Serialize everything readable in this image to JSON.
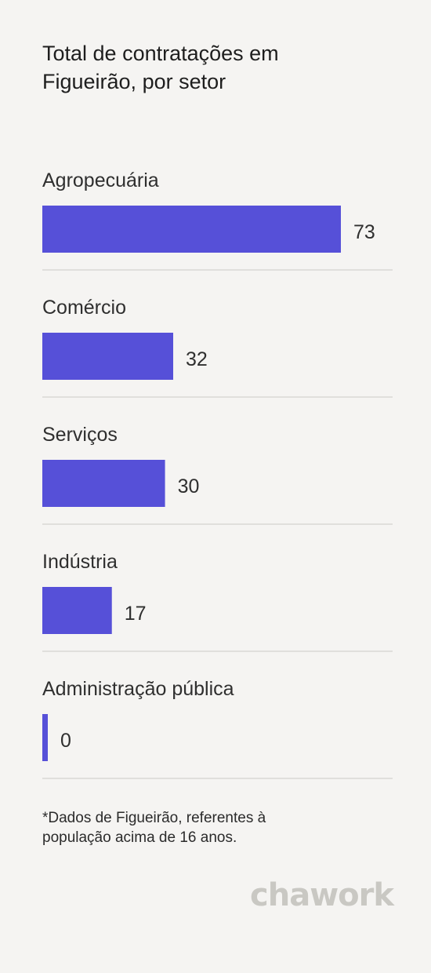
{
  "chart_data": {
    "type": "bar",
    "orientation": "horizontal",
    "title": "Total de contratações em Figueirão, por setor",
    "categories": [
      "Agropecuária",
      "Comércio",
      "Serviços",
      "Indústria",
      "Administração pública"
    ],
    "values": [
      73,
      32,
      30,
      17,
      0
    ],
    "value_labels": [
      "73",
      "32",
      "30",
      "17",
      "0"
    ],
    "bar_color": "#5650d8",
    "separator_color": "#e0dfdc",
    "grid": false,
    "legend": "none"
  },
  "footnote": "*Dados de Figueirão, referentes à população acima de 16 anos.",
  "brand": "chawork",
  "colors": {
    "background": "#f5f4f2",
    "text": "#2b2b2b",
    "logo": "#c9c8c3"
  }
}
